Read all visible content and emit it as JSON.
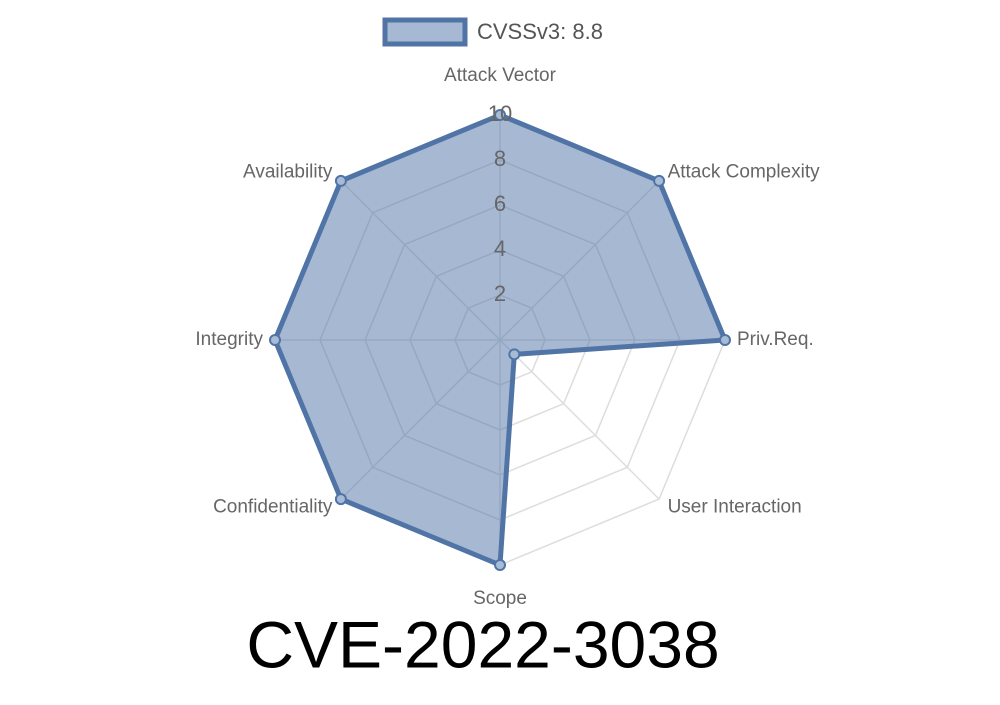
{
  "chart_data": {
    "type": "radar",
    "title": "CVE-2022-3038",
    "categories": [
      "Attack Vector",
      "Attack Complexity",
      "Priv.Req.",
      "User Interaction",
      "Scope",
      "Confidentiality",
      "Integrity",
      "Availability"
    ],
    "series": [
      {
        "name": "CVSSv3: 8.8",
        "color": "#4f74a5",
        "values": [
          10,
          10,
          10,
          0.9,
          10,
          10,
          10,
          10
        ]
      }
    ],
    "rlim": [
      0,
      10
    ],
    "rticks": [
      2,
      4,
      6,
      8,
      10
    ],
    "grid": true,
    "legend": "top"
  }
}
